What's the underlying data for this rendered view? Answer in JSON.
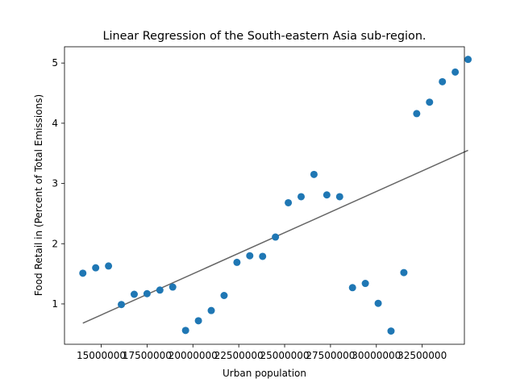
{
  "chart_data": {
    "type": "scatter",
    "title": "Linear Regression of the South-eastern Asia sub-region.",
    "xlabel": "Urban population",
    "ylabel": "Food Retail in (Percent of Total Emissions)",
    "xlim": [
      13000000,
      34800000
    ],
    "ylim": [
      0.33,
      5.27
    ],
    "xticks": [
      15000000,
      17500000,
      20000000,
      22500000,
      25000000,
      27500000,
      30000000,
      32500000
    ],
    "xtick_labels": [
      "15000000",
      "17500000",
      "20000000",
      "22500000",
      "25000000",
      "27500000",
      "30000000",
      "32500000"
    ],
    "yticks": [
      1,
      2,
      3,
      4,
      5
    ],
    "ytick_labels": [
      "1",
      "2",
      "3",
      "4",
      "5"
    ],
    "grid": false,
    "colors": {
      "points": "#1f77b4",
      "fit_line": "#666666"
    },
    "points": [
      {
        "x": 14000000,
        "y": 1.51
      },
      {
        "x": 14700000,
        "y": 1.6
      },
      {
        "x": 15400000,
        "y": 1.63
      },
      {
        "x": 16100000,
        "y": 0.99
      },
      {
        "x": 16800000,
        "y": 1.16
      },
      {
        "x": 17500000,
        "y": 1.17
      },
      {
        "x": 18200000,
        "y": 1.23
      },
      {
        "x": 18900000,
        "y": 1.28
      },
      {
        "x": 19600000,
        "y": 0.56
      },
      {
        "x": 20300000,
        "y": 0.72
      },
      {
        "x": 21000000,
        "y": 0.89
      },
      {
        "x": 21700000,
        "y": 1.14
      },
      {
        "x": 22400000,
        "y": 1.69
      },
      {
        "x": 23100000,
        "y": 1.8
      },
      {
        "x": 23800000,
        "y": 1.79
      },
      {
        "x": 24500000,
        "y": 2.11
      },
      {
        "x": 25200000,
        "y": 2.68
      },
      {
        "x": 25900000,
        "y": 2.78
      },
      {
        "x": 26600000,
        "y": 3.15
      },
      {
        "x": 27300000,
        "y": 2.81
      },
      {
        "x": 28000000,
        "y": 2.78
      },
      {
        "x": 28700000,
        "y": 1.27
      },
      {
        "x": 29400000,
        "y": 1.34
      },
      {
        "x": 30100000,
        "y": 1.01
      },
      {
        "x": 30800000,
        "y": 0.55
      },
      {
        "x": 31500000,
        "y": 1.52
      },
      {
        "x": 32200000,
        "y": 4.16
      },
      {
        "x": 32900000,
        "y": 4.35
      },
      {
        "x": 33600000,
        "y": 4.69
      },
      {
        "x": 34300000,
        "y": 4.85
      },
      {
        "x": 35000000,
        "y": 5.06
      }
    ],
    "fit_line": {
      "x": [
        14000000,
        35000000
      ],
      "y": [
        0.68,
        3.55
      ]
    }
  }
}
